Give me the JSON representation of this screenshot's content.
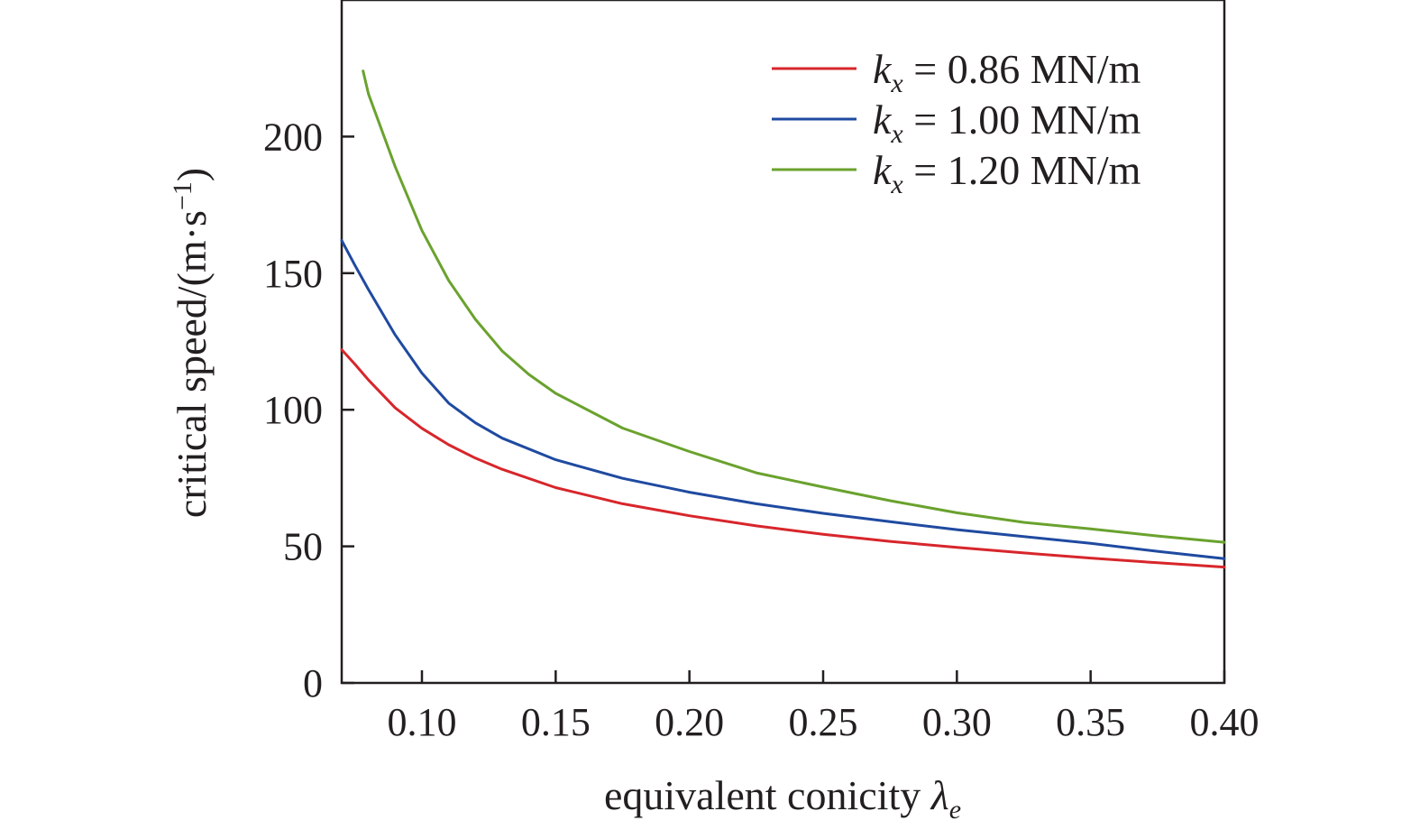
{
  "chart_data": {
    "type": "line",
    "xlabel": {
      "text": "equivalent conicity ",
      "symbol": "λ",
      "sub": "e"
    },
    "ylabel": {
      "text": "critical speed/(m·s",
      "sup": "−1",
      "close": ")"
    },
    "xlim": [
      0.07,
      0.4
    ],
    "ylim": [
      0,
      250
    ],
    "xticks": [
      0.1,
      0.15,
      0.2,
      0.25,
      0.3,
      0.35,
      0.4
    ],
    "xtick_labels": [
      "0.10",
      "0.15",
      "0.20",
      "0.25",
      "0.30",
      "0.35",
      "0.40"
    ],
    "yticks": [
      0,
      50,
      100,
      150,
      200
    ],
    "ytick_labels": [
      "0",
      "50",
      "100",
      "150",
      "200"
    ],
    "grid": false,
    "legend_position": "top-right",
    "series": [
      {
        "name": "k_x = 0.86 MN/m",
        "legend": {
          "sym": "k",
          "sub": "x",
          "rest": " = 0.86 MN/m"
        },
        "color": "#d7262b",
        "x": [
          0.07,
          0.075,
          0.08,
          0.09,
          0.1,
          0.11,
          0.12,
          0.13,
          0.15,
          0.175,
          0.2,
          0.225,
          0.25,
          0.275,
          0.3,
          0.325,
          0.35,
          0.375,
          0.4
        ],
        "y": [
          122,
          116.6,
          110.9,
          100.7,
          93.2,
          87.2,
          82.3,
          78.2,
          71.5,
          65.6,
          61.2,
          57.5,
          54.4,
          51.8,
          49.6,
          47.6,
          45.7,
          44.0,
          42.4
        ]
      },
      {
        "name": "k_x = 1.00 MN/m",
        "legend": {
          "sym": "k",
          "sub": "x",
          "rest": " = 1.00 MN/m"
        },
        "color": "#1f4aa0",
        "x": [
          0.07,
          0.075,
          0.08,
          0.09,
          0.1,
          0.11,
          0.12,
          0.13,
          0.15,
          0.175,
          0.2,
          0.225,
          0.25,
          0.275,
          0.3,
          0.325,
          0.35,
          0.375,
          0.4
        ],
        "y": [
          162,
          152.8,
          144.0,
          127.4,
          113.4,
          102.4,
          95.2,
          89.6,
          81.7,
          74.9,
          69.8,
          65.6,
          62.1,
          59.0,
          56.1,
          53.6,
          51.1,
          48.2,
          45.5
        ]
      },
      {
        "name": "k_x = 1.20 MN/m",
        "legend": {
          "sym": "k",
          "sub": "x",
          "rest": " = 1.20 MN/m"
        },
        "color": "#6aa22e",
        "x": [
          0.078,
          0.08,
          0.09,
          0.1,
          0.11,
          0.12,
          0.13,
          0.14,
          0.15,
          0.175,
          0.2,
          0.225,
          0.25,
          0.275,
          0.3,
          0.325,
          0.35,
          0.375,
          0.4
        ],
        "y": [
          224,
          215.6,
          189.0,
          165.6,
          147.3,
          133.1,
          121.5,
          112.9,
          106.0,
          93.3,
          84.7,
          76.9,
          71.7,
          66.7,
          62.3,
          58.8,
          56.4,
          53.8,
          51.5
        ]
      }
    ]
  }
}
